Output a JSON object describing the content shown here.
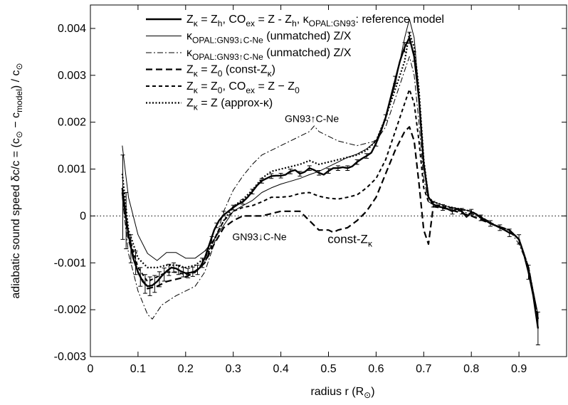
{
  "chart_data": {
    "type": "line",
    "title": "",
    "xlabel": {
      "main": "radius  r  (R",
      "sub": "⊙",
      "tail": ")"
    },
    "ylabel": {
      "main": "adiabatic sound speed   δc/c = (c",
      "sub1": "⊙",
      "mid": " − c",
      "sub2": "model",
      "mid2": ") / c",
      "sub3": "⊙"
    },
    "xlim": [
      0,
      1
    ],
    "ylim": [
      -0.003,
      0.0045
    ],
    "xticks": [
      0,
      0.1,
      0.2,
      0.3,
      0.4,
      0.5,
      0.6,
      0.7,
      0.8,
      0.9
    ],
    "xtick_labels": [
      "0",
      "0.1",
      "0.2",
      "0.3",
      "0.4",
      "0.5",
      "0.6",
      "0.7",
      "0.8",
      "0.9"
    ],
    "yticks": [
      -0.003,
      -0.002,
      -0.001,
      0,
      0.001,
      0.002,
      0.003,
      0.004
    ],
    "ytick_labels": [
      "-0.003",
      "-0.002",
      "-0.001",
      "0",
      "0.001",
      "0.002",
      "0.003",
      "0.004"
    ],
    "zero_line": true,
    "grid": false,
    "legend_position": "top-right",
    "series": [
      {
        "key": "reference",
        "legend": [
          [
            "Z",
            ""
          ],
          [
            "κ",
            "sub"
          ],
          [
            " = Z",
            ""
          ],
          [
            "h",
            "sub"
          ],
          [
            ", CO",
            ""
          ],
          [
            "ex",
            "sub"
          ],
          [
            " = Z - Z",
            ""
          ],
          [
            "h",
            "sub"
          ],
          [
            ", κ",
            ""
          ],
          [
            "OPAL:GN93",
            "sub"
          ],
          [
            ": reference model",
            ""
          ]
        ],
        "style": "thick",
        "x": [
          0.067,
          0.073,
          0.08,
          0.09,
          0.1,
          0.11,
          0.12,
          0.13,
          0.14,
          0.15,
          0.16,
          0.17,
          0.18,
          0.19,
          0.2,
          0.21,
          0.22,
          0.23,
          0.24,
          0.25,
          0.26,
          0.27,
          0.28,
          0.29,
          0.3,
          0.31,
          0.32,
          0.33,
          0.34,
          0.35,
          0.36,
          0.37,
          0.38,
          0.39,
          0.4,
          0.41,
          0.42,
          0.43,
          0.44,
          0.45,
          0.46,
          0.47,
          0.48,
          0.49,
          0.5,
          0.51,
          0.52,
          0.53,
          0.54,
          0.55,
          0.56,
          0.57,
          0.58,
          0.59,
          0.6,
          0.61,
          0.62,
          0.63,
          0.64,
          0.65,
          0.66,
          0.67,
          0.68,
          0.69,
          0.7,
          0.71,
          0.72,
          0.73,
          0.74,
          0.75,
          0.76,
          0.77,
          0.78,
          0.79,
          0.8,
          0.81,
          0.82,
          0.83,
          0.84,
          0.85,
          0.86,
          0.87,
          0.88,
          0.89,
          0.9,
          0.91,
          0.92,
          0.93,
          0.94
        ],
        "y": [
          0.0006,
          0.0001,
          -0.0004,
          -0.0009,
          -0.0012,
          -0.0014,
          -0.0015,
          -0.00148,
          -0.0014,
          -0.00128,
          -0.00118,
          -0.0011,
          -0.00112,
          -0.00118,
          -0.00122,
          -0.00121,
          -0.00118,
          -0.0011,
          -0.0009,
          -0.0006,
          -0.0003,
          -0.0001,
          2e-05,
          0.0001,
          0.00018,
          0.00025,
          0.0003,
          0.0004,
          0.00052,
          0.00065,
          0.00075,
          0.0008,
          0.00085,
          0.00086,
          0.00086,
          0.00088,
          0.00095,
          0.00098,
          0.0009,
          0.00094,
          0.00102,
          0.00098,
          0.00092,
          0.00088,
          0.00096,
          0.00102,
          0.00102,
          0.00104,
          0.00102,
          0.00106,
          0.00115,
          0.00122,
          0.00128,
          0.00135,
          0.00155,
          0.0018,
          0.0021,
          0.0025,
          0.0029,
          0.0033,
          0.0036,
          0.0038,
          0.0034,
          0.0025,
          0.0011,
          0.0004,
          0.00025,
          0.0002,
          0.00018,
          0.00015,
          0.0001,
          0.00015,
          0.0001,
          -2e-05,
          8e-05,
          4e-05,
          -4e-05,
          -0.0001,
          -0.00016,
          -0.0002,
          -0.00025,
          -0.0003,
          -0.00036,
          -0.0004,
          -0.0005,
          -0.0008,
          -0.0012,
          -0.0017,
          -0.0024
        ],
        "errors": true
      },
      {
        "key": "gn93_down",
        "legend": [
          [
            "κ",
            ""
          ],
          [
            "OPAL:GN93↓C-Ne",
            "sub"
          ],
          [
            " (unmatched) Z/X",
            ""
          ]
        ],
        "style": "thin",
        "x": [
          0.067,
          0.08,
          0.1,
          0.12,
          0.14,
          0.16,
          0.18,
          0.2,
          0.22,
          0.24,
          0.26,
          0.28,
          0.3,
          0.32,
          0.34,
          0.36,
          0.38,
          0.4,
          0.42,
          0.44,
          0.46,
          0.48,
          0.5,
          0.52,
          0.54,
          0.56,
          0.58,
          0.6,
          0.62,
          0.64,
          0.66,
          0.67,
          0.68,
          0.69,
          0.7,
          0.71,
          0.72,
          0.75,
          0.8,
          0.85,
          0.88,
          0.9,
          0.92,
          0.94
        ],
        "y": [
          0.0015,
          0.0004,
          -0.0004,
          -0.0008,
          -0.00095,
          -0.00078,
          -0.00078,
          -0.0009,
          -0.0009,
          -0.00075,
          -0.0005,
          -0.0002,
          0.0001,
          0.00022,
          0.00033,
          0.0005,
          0.0006,
          0.00068,
          0.00074,
          0.0008,
          0.00088,
          0.00095,
          0.00105,
          0.00115,
          0.00125,
          0.00132,
          0.00143,
          0.0016,
          0.0021,
          0.0028,
          0.0038,
          0.0042,
          0.0038,
          0.0026,
          0.0012,
          0.0004,
          0.0003,
          0.0002,
          0.0001,
          -0.0002,
          -0.0003,
          -0.0005,
          -0.0011,
          -0.0021
        ]
      },
      {
        "key": "gn93_up",
        "legend": [
          [
            "κ",
            ""
          ],
          [
            "OPAL:GN93↑C-Ne",
            "sub"
          ],
          [
            " (unmatched) Z/X",
            ""
          ]
        ],
        "style": "dashdot",
        "x": [
          0.067,
          0.08,
          0.1,
          0.12,
          0.13,
          0.15,
          0.18,
          0.2,
          0.22,
          0.24,
          0.26,
          0.28,
          0.3,
          0.32,
          0.34,
          0.36,
          0.38,
          0.4,
          0.42,
          0.44,
          0.46,
          0.47,
          0.48,
          0.5,
          0.52,
          0.54,
          0.56,
          0.58,
          0.6,
          0.62,
          0.64,
          0.66,
          0.67,
          0.68,
          0.69,
          0.7,
          0.71,
          0.72,
          0.75,
          0.8,
          0.85,
          0.88,
          0.9,
          0.92,
          0.94
        ],
        "y": [
          0.0004,
          -0.0008,
          -0.0016,
          -0.0021,
          -0.0022,
          -0.0019,
          -0.0017,
          -0.0016,
          -0.0015,
          -0.0012,
          -0.0006,
          0.0001,
          0.00055,
          0.00085,
          0.0011,
          0.0013,
          0.0014,
          0.0015,
          0.0016,
          0.0017,
          0.0018,
          0.00192,
          0.0018,
          0.0017,
          0.0016,
          0.00155,
          0.0015,
          0.00155,
          0.0016,
          0.0019,
          0.0025,
          0.0031,
          0.0034,
          0.003,
          0.002,
          0.0008,
          0.0003,
          0.00025,
          0.00015,
          5e-05,
          -0.0002,
          -0.0003,
          -0.0006,
          -0.0011,
          -0.0023
        ]
      },
      {
        "key": "const_z",
        "legend": [
          [
            "Z",
            ""
          ],
          [
            "κ",
            "sub"
          ],
          [
            " = Z",
            ""
          ],
          [
            "0",
            "sub"
          ],
          [
            " (const-Z",
            ""
          ],
          [
            "κ",
            "sub"
          ],
          [
            ")",
            ""
          ]
        ],
        "style": "longdash",
        "x": [
          0.067,
          0.08,
          0.1,
          0.12,
          0.14,
          0.16,
          0.18,
          0.2,
          0.22,
          0.24,
          0.26,
          0.28,
          0.3,
          0.32,
          0.34,
          0.36,
          0.38,
          0.4,
          0.42,
          0.44,
          0.46,
          0.48,
          0.5,
          0.51,
          0.52,
          0.54,
          0.56,
          0.58,
          0.6,
          0.62,
          0.64,
          0.66,
          0.67,
          0.68,
          0.69,
          0.7,
          0.71,
          0.72,
          0.75,
          0.8,
          0.85,
          0.88,
          0.9,
          0.92,
          0.94
        ],
        "y": [
          0.0005,
          -0.0005,
          -0.0012,
          -0.00155,
          -0.0015,
          -0.0014,
          -0.00135,
          -0.0013,
          -0.0012,
          -0.001,
          -0.0006,
          -0.00025,
          -0.0001,
          0.0,
          0.0,
          0.0,
          5e-05,
          0.0001,
          0.0001,
          0.0001,
          -0.0001,
          -0.0003,
          -0.0003,
          -0.00035,
          -0.0003,
          -0.00025,
          -0.0001,
          0.0001,
          0.0004,
          0.0009,
          0.0014,
          0.0018,
          0.0019,
          0.0016,
          0.0007,
          -0.0003,
          -0.0006,
          0.0002,
          0.00015,
          0.0,
          -0.0002,
          -0.0003,
          -0.0005,
          -0.0011,
          -0.0022
        ]
      },
      {
        "key": "co_ex",
        "legend": [
          [
            "Z",
            ""
          ],
          [
            "κ",
            "sub"
          ],
          [
            " = Z",
            ""
          ],
          [
            "0",
            "sub"
          ],
          [
            ", CO",
            ""
          ],
          [
            "ex",
            "sub"
          ],
          [
            " = Z − Z",
            ""
          ],
          [
            "0",
            "sub"
          ]
        ],
        "style": "dash",
        "x": [
          0.067,
          0.08,
          0.1,
          0.12,
          0.14,
          0.16,
          0.18,
          0.2,
          0.22,
          0.24,
          0.26,
          0.28,
          0.3,
          0.32,
          0.34,
          0.36,
          0.38,
          0.4,
          0.42,
          0.44,
          0.46,
          0.48,
          0.5,
          0.52,
          0.54,
          0.56,
          0.58,
          0.6,
          0.62,
          0.64,
          0.66,
          0.67,
          0.68,
          0.69,
          0.7,
          0.71,
          0.72,
          0.75,
          0.8,
          0.85,
          0.88,
          0.9,
          0.92,
          0.94
        ],
        "y": [
          0.0005,
          -0.0004,
          -0.0011,
          -0.0014,
          -0.0013,
          -0.0012,
          -0.0012,
          -0.00125,
          -0.0012,
          -0.001,
          -0.0005,
          -0.0001,
          0.0001,
          0.00018,
          0.00022,
          0.0003,
          0.0004,
          0.0004,
          0.00042,
          0.00048,
          0.0005,
          0.00042,
          0.00038,
          0.00036,
          0.0004,
          0.00045,
          0.0006,
          0.0008,
          0.0012,
          0.0018,
          0.0024,
          0.0027,
          0.0024,
          0.0016,
          0.0006,
          0.0003,
          0.00025,
          0.00018,
          0.0001,
          -0.0002,
          -0.0003,
          -0.0005,
          -0.0011,
          -0.0022
        ]
      },
      {
        "key": "approx_k",
        "legend": [
          [
            "Z",
            ""
          ],
          [
            "κ",
            "sub"
          ],
          [
            " = Z (approx-κ)",
            ""
          ]
        ],
        "style": "dot",
        "x": [
          0.067,
          0.08,
          0.1,
          0.12,
          0.14,
          0.16,
          0.18,
          0.2,
          0.22,
          0.24,
          0.26,
          0.28,
          0.3,
          0.32,
          0.34,
          0.36,
          0.38,
          0.4,
          0.42,
          0.44,
          0.46,
          0.48,
          0.5,
          0.52,
          0.54,
          0.56,
          0.58,
          0.6,
          0.62,
          0.64,
          0.66,
          0.67,
          0.68,
          0.69,
          0.7,
          0.71,
          0.72,
          0.75,
          0.8,
          0.85,
          0.88,
          0.9,
          0.92,
          0.94
        ],
        "y": [
          0.0009,
          -0.0003,
          -0.0009,
          -0.0011,
          -0.0011,
          -0.00105,
          -0.00105,
          -0.0011,
          -0.00105,
          -0.0009,
          -0.0005,
          -0.0001,
          0.0002,
          0.00035,
          0.00055,
          0.0008,
          0.00095,
          0.001,
          0.00105,
          0.0011,
          0.00118,
          0.0011,
          0.00115,
          0.0012,
          0.00125,
          0.0013,
          0.0014,
          0.0016,
          0.0021,
          0.0027,
          0.0033,
          0.0039,
          0.0036,
          0.0027,
          0.0012,
          0.0004,
          0.0003,
          0.0002,
          0.0001,
          -0.0002,
          -0.0003,
          -0.0005,
          -0.0011,
          -0.0022
        ]
      }
    ],
    "error_bars": {
      "x": [
        0.068,
        0.075,
        0.085,
        0.095,
        0.105,
        0.115,
        0.125,
        0.135,
        0.145,
        0.155,
        0.165,
        0.175,
        0.185,
        0.195,
        0.205,
        0.215,
        0.225,
        0.235,
        0.245,
        0.255,
        0.265,
        0.28,
        0.3,
        0.32,
        0.34,
        0.36,
        0.38,
        0.4,
        0.42,
        0.44,
        0.46,
        0.48,
        0.5,
        0.52,
        0.54,
        0.56,
        0.58,
        0.6,
        0.62,
        0.64,
        0.66,
        0.67,
        0.68,
        0.72,
        0.74,
        0.76,
        0.78,
        0.8,
        0.82,
        0.84,
        0.86,
        0.88,
        0.9,
        0.92,
        0.94
      ],
      "y": [
        0.0004,
        -0.0001,
        -0.0007,
        -0.001,
        -0.0013,
        -0.00145,
        -0.0015,
        -0.00145,
        -0.00135,
        -0.00125,
        -0.00115,
        -0.0011,
        -0.00115,
        -0.0012,
        -0.00122,
        -0.00119,
        -0.00115,
        -0.001,
        -0.0008,
        -0.0005,
        -0.0002,
        5e-05,
        0.00018,
        0.0003,
        0.00052,
        0.00075,
        0.00085,
        0.00086,
        0.00095,
        0.0009,
        0.00102,
        0.00092,
        0.00096,
        0.00102,
        0.00102,
        0.00115,
        0.00128,
        0.00155,
        0.0021,
        0.0029,
        0.0036,
        0.0038,
        0.0034,
        0.00025,
        0.00018,
        0.0001,
        0.0001,
        8e-05,
        -4e-05,
        -0.00016,
        -0.00025,
        -0.00036,
        -0.0005,
        -0.0012,
        -0.0024
      ],
      "err": [
        0.0009,
        0.0006,
        0.0003,
        0.00025,
        0.0002,
        0.0002,
        0.0002,
        0.00018,
        0.00016,
        0.00014,
        0.00012,
        0.0001,
        0.0001,
        0.0001,
        0.0001,
        0.0001,
        0.0001,
        0.0001,
        6e-05,
        6e-05,
        5e-05,
        5e-05,
        5e-05,
        5e-05,
        5e-05,
        5e-05,
        5e-05,
        5e-05,
        5e-05,
        5e-05,
        5e-05,
        5e-05,
        5e-05,
        5e-05,
        5e-05,
        5e-05,
        5e-05,
        6e-05,
        6e-05,
        8e-05,
        0.0001,
        0.00012,
        0.0001,
        6e-05,
        6e-05,
        6e-05,
        6e-05,
        6e-05,
        6e-05,
        6e-05,
        6e-05,
        8e-05,
        0.0001,
        0.00015,
        0.00035
      ]
    },
    "annotations": [
      {
        "key": "gn93_up_label",
        "text": "GN93↑C-Ne",
        "x": 0.465,
        "y": 0.002
      },
      {
        "key": "gn93_down_label",
        "text": "GN93↓C-Ne",
        "x": 0.355,
        "y": -0.00052
      },
      {
        "key": "const_label",
        "parts": [
          [
            "const-Z",
            ""
          ],
          [
            "κ",
            "sub"
          ]
        ],
        "x": 0.545,
        "y": -0.00058
      }
    ]
  }
}
